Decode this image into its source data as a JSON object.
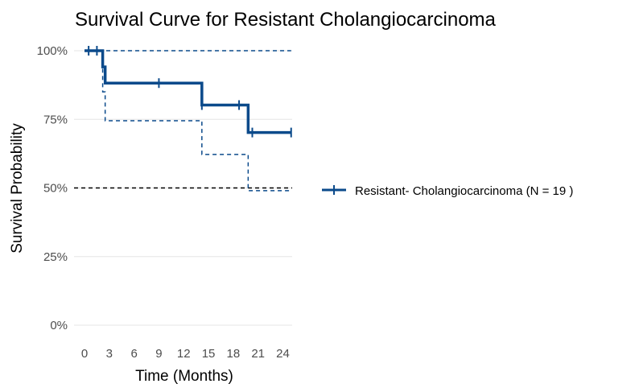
{
  "chart_data": {
    "type": "line",
    "title": "Survival Curve for Resistant Cholangiocarcinoma",
    "xlabel": "Time (Months)",
    "ylabel": "Survival Probability",
    "xlim": [
      0,
      25
    ],
    "ylim": [
      0,
      1
    ],
    "x_ticks": [
      0,
      3,
      6,
      9,
      12,
      15,
      18,
      21,
      24
    ],
    "y_ticks": [
      0,
      0.25,
      0.5,
      0.75,
      1.0
    ],
    "y_tick_labels": [
      "0%",
      "25%",
      "50%",
      "75%",
      "100%"
    ],
    "grid": true,
    "legend_position": "right",
    "series": [
      {
        "name": "Resistant- Cholangiocarcinoma (N = 19 )",
        "color": "#0b4a8b",
        "steps": [
          [
            0,
            1.0
          ],
          [
            2.2,
            0.941
          ],
          [
            2.5,
            0.882
          ],
          [
            14.2,
            0.802
          ],
          [
            19.8,
            0.702
          ],
          [
            25,
            0.702
          ]
        ],
        "censored": [
          [
            0.5,
            1.0
          ],
          [
            1.5,
            1.0
          ],
          [
            9.0,
            0.882
          ],
          [
            14.2,
            0.802
          ],
          [
            18.7,
            0.802
          ],
          [
            20.3,
            0.702
          ],
          [
            25,
            0.702
          ]
        ],
        "ci_upper": [
          [
            0,
            1.0
          ],
          [
            25,
            1.0
          ]
        ],
        "ci_lower": [
          [
            0,
            1.0
          ],
          [
            2.2,
            0.85
          ],
          [
            2.5,
            0.745
          ],
          [
            14.2,
            0.622
          ],
          [
            19.8,
            0.49
          ],
          [
            25,
            0.49
          ]
        ]
      }
    ],
    "reference_line": {
      "y": 0.5,
      "color": "#000000"
    }
  }
}
